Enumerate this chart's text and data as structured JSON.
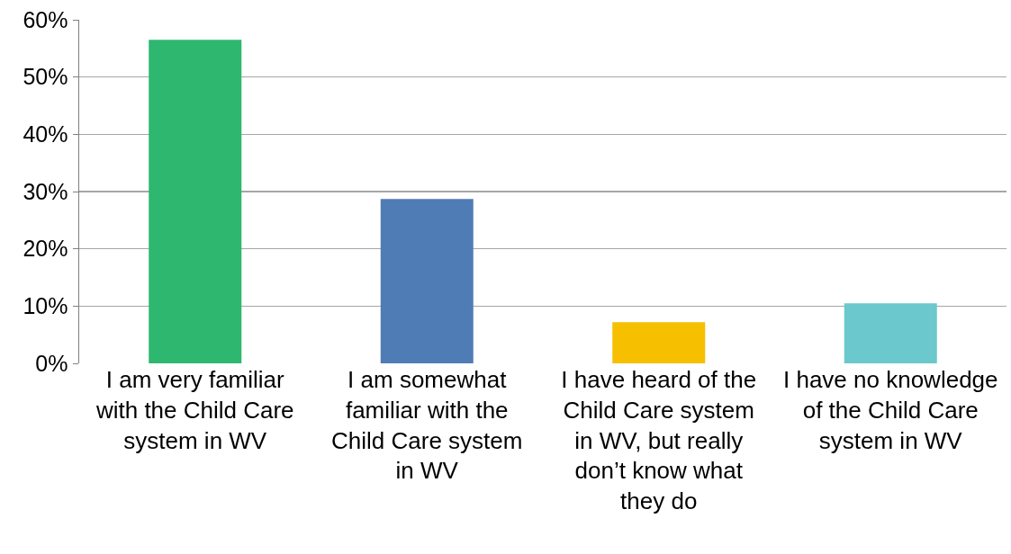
{
  "chart_data": {
    "type": "bar",
    "categories": [
      "I am very familiar with the Child Care system in WV",
      "I am somewhat familiar with the Child Care system in WV",
      "I have heard of the Child Care system in WV, but really don’t know what they do",
      "I have no knowledge of the Child Care system in WV"
    ],
    "values": [
      56.5,
      28.7,
      7.2,
      10.5
    ],
    "colors": [
      "#2eb76f",
      "#4f7cb5",
      "#f6bf00",
      "#6bc8cc"
    ],
    "ylim": [
      0,
      60
    ],
    "yticks": [
      {
        "value": 0,
        "label": "0%"
      },
      {
        "value": 10,
        "label": "10%"
      },
      {
        "value": 20,
        "label": "20%"
      },
      {
        "value": 30,
        "label": "30%"
      },
      {
        "value": 40,
        "label": "40%"
      },
      {
        "value": 50,
        "label": "50%"
      },
      {
        "value": 60,
        "label": "60%"
      }
    ],
    "grid": "y",
    "legend": false
  }
}
